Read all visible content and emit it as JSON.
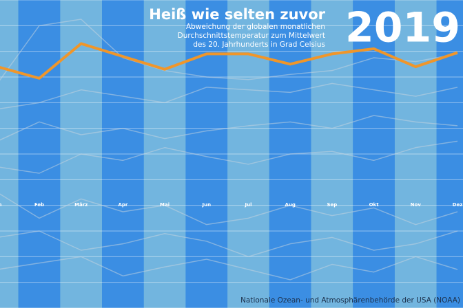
{
  "chart_data": {
    "type": "line",
    "title": "Heiß wie selten zuvor",
    "subtitle": [
      "Abweichung der globalen monatlichen",
      "Durchschnittstemperatur zum Mittelwert",
      "des 20. Jahrhunderts in Grad Celsius"
    ],
    "source": "Nationale Ozean- und Atmosphärenbehörde der USA (NOAA)",
    "categories": [
      "Jan",
      "Feb",
      "März",
      "Apr",
      "Mai",
      "Jun",
      "Jul",
      "Aug",
      "Sep",
      "Okt",
      "Nov",
      "Dez"
    ],
    "ylim": [
      -1,
      1.4
    ],
    "yticks": [
      -1,
      -0.8,
      -0.6,
      -0.4,
      -0.2,
      0,
      0.2,
      0.4,
      0.6,
      0.8,
      1,
      1.2,
      1.4
    ],
    "grid": true,
    "series": [
      {
        "name": "2019",
        "color": "#f0962a",
        "values": [
          0.88,
          0.79,
          1.06,
          0.96,
          0.86,
          0.98,
          0.98,
          0.9,
          0.98,
          1.02,
          0.88,
          0.99
        ]
      },
      {
        "color": "#c9d6e0",
        "values": [
          0.75,
          1.2,
          1.25,
          0.95,
          0.85,
          0.8,
          0.78,
          0.82,
          0.85,
          0.95,
          0.92,
          0.98
        ]
      },
      {
        "color": "#c9d6e0",
        "values": [
          0.55,
          0.6,
          0.7,
          0.65,
          0.6,
          0.72,
          0.7,
          0.68,
          0.75,
          0.7,
          0.65,
          0.72
        ]
      },
      {
        "color": "#c9d6e0",
        "values": [
          0.3,
          0.45,
          0.35,
          0.4,
          0.32,
          0.38,
          0.42,
          0.45,
          0.4,
          0.5,
          0.45,
          0.42
        ]
      },
      {
        "color": "#c9d6e0",
        "values": [
          0.1,
          0.05,
          0.2,
          0.15,
          0.25,
          0.18,
          0.12,
          0.2,
          0.22,
          0.15,
          0.25,
          0.3
        ]
      },
      {
        "color": "#c9d6e0",
        "values": [
          -0.1,
          -0.3,
          -0.15,
          -0.25,
          -0.2,
          -0.35,
          -0.3,
          -0.2,
          -0.28,
          -0.22,
          -0.35,
          -0.25
        ]
      },
      {
        "color": "#c9d6e0",
        "values": [
          -0.45,
          -0.4,
          -0.55,
          -0.5,
          -0.42,
          -0.48,
          -0.6,
          -0.5,
          -0.45,
          -0.55,
          -0.5,
          -0.4
        ]
      },
      {
        "color": "#c9d6e0",
        "values": [
          -0.7,
          -0.65,
          -0.6,
          -0.75,
          -0.68,
          -0.62,
          -0.7,
          -0.78,
          -0.66,
          -0.72,
          -0.6,
          -0.7
        ]
      }
    ]
  }
}
